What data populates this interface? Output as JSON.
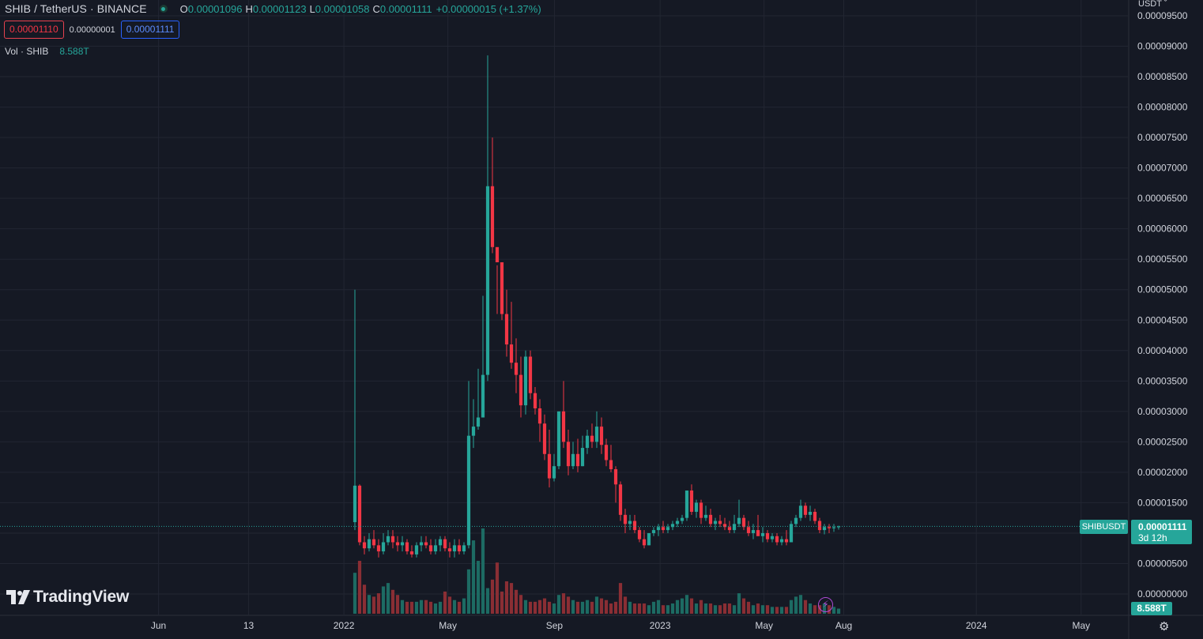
{
  "header": {
    "symbol_title": "SHIB / TetherUS · BINANCE",
    "ohlc": [
      {
        "key": "O",
        "value": "0.00001096"
      },
      {
        "key": "H",
        "value": "0.00001123"
      },
      {
        "key": "L",
        "value": "0.00001058"
      },
      {
        "key": "C",
        "value": "0.00001111"
      }
    ],
    "change": "+0.00000015 (+1.37%)",
    "bid": "0.00001110",
    "spread": "0.00000001",
    "ask": "0.00001111",
    "volume_label": "Vol · SHIB",
    "volume_value": "8.588T"
  },
  "currency_menu": "USDT ˇ",
  "logo_text": "TradingView",
  "price_scale": {
    "symbol_label": "SHIBUSDT",
    "last_price": "0.00001111",
    "countdown": "3d 12h",
    "volume_label": "8.588T"
  },
  "colors": {
    "background": "#151924",
    "grid": "#222632",
    "up": "#26a69a",
    "down": "#f23645",
    "up_volume": "#1d6b63",
    "down_volume": "#8a2e34",
    "text": "#d1d4dc"
  },
  "icons": {
    "flash": "lightning-icon",
    "settings": "gear-icon",
    "currency": "chevron-down-icon"
  },
  "chart_data": {
    "type": "candlestick",
    "interval": "1W",
    "y_axis_ticks": [
      "0.00000000",
      "0.00000500",
      "0.00001000",
      "0.00001500",
      "0.00002000",
      "0.00002500",
      "0.00003000",
      "0.00003500",
      "0.00004000",
      "0.00004500",
      "0.00005000",
      "0.00005500",
      "0.00006000",
      "0.00006500",
      "0.00007000",
      "0.00007500",
      "0.00008000",
      "0.00008500",
      "0.00009000",
      "0.00009500"
    ],
    "ylim": [
      0,
      9.5e-05
    ],
    "x_axis_ticks": [
      {
        "label": "Jun",
        "date": "2021-06-01"
      },
      {
        "label": "13",
        "date": "2021-09-13"
      },
      {
        "label": "2022",
        "date": "2022-01-01"
      },
      {
        "label": "May",
        "date": "2022-05-01"
      },
      {
        "label": "Sep",
        "date": "2022-09-01"
      },
      {
        "label": "2023",
        "date": "2023-01-01"
      },
      {
        "label": "May",
        "date": "2023-05-01"
      },
      {
        "label": "Aug",
        "date": "2023-08-01"
      },
      {
        "label": "2024",
        "date": "2024-01-01"
      },
      {
        "label": "May",
        "date": "2024-05-01"
      }
    ],
    "xlim": [
      "2020-11-30",
      "2024-06-24"
    ],
    "last_price": 1.111e-05,
    "candles_ohlcv_1e_minus_8": [
      [
        1180,
        5000,
        1050,
        1780,
        48
      ],
      [
        1780,
        1800,
        800,
        850,
        62
      ],
      [
        850,
        950,
        650,
        750,
        34
      ],
      [
        750,
        1000,
        700,
        900,
        22
      ],
      [
        900,
        1050,
        750,
        800,
        20
      ],
      [
        800,
        900,
        600,
        700,
        24
      ],
      [
        700,
        1000,
        650,
        850,
        32
      ],
      [
        850,
        1050,
        800,
        950,
        36
      ],
      [
        950,
        1050,
        750,
        850,
        28
      ],
      [
        850,
        950,
        700,
        800,
        22
      ],
      [
        800,
        950,
        700,
        850,
        16
      ],
      [
        850,
        900,
        650,
        700,
        14
      ],
      [
        700,
        800,
        600,
        650,
        14
      ],
      [
        650,
        850,
        600,
        800,
        14
      ],
      [
        800,
        950,
        700,
        850,
        16
      ],
      [
        850,
        950,
        750,
        800,
        16
      ],
      [
        800,
        900,
        650,
        700,
        14
      ],
      [
        700,
        900,
        650,
        800,
        12
      ],
      [
        800,
        950,
        700,
        900,
        14
      ],
      [
        900,
        950,
        700,
        750,
        26
      ],
      [
        750,
        850,
        600,
        700,
        20
      ],
      [
        700,
        900,
        600,
        800,
        16
      ],
      [
        800,
        900,
        650,
        700,
        14
      ],
      [
        700,
        850,
        650,
        800,
        18
      ],
      [
        800,
        3500,
        750,
        2600,
        52
      ],
      [
        2600,
        3200,
        2400,
        2750,
        86
      ],
      [
        2750,
        3700,
        2700,
        2900,
        62
      ],
      [
        2900,
        4900,
        2900,
        3600,
        100
      ],
      [
        3600,
        8850,
        3500,
        6700,
        30
      ],
      [
        6700,
        7500,
        5600,
        5700,
        40
      ],
      [
        5700,
        5400,
        4600,
        5450,
        60
      ],
      [
        5450,
        5400,
        4500,
        4600,
        26
      ],
      [
        4600,
        5000,
        3900,
        4100,
        38
      ],
      [
        4100,
        4800,
        3700,
        3800,
        36
      ],
      [
        3800,
        4200,
        3300,
        3600,
        28
      ],
      [
        3600,
        3900,
        2900,
        3100,
        22
      ],
      [
        3100,
        4000,
        2950,
        3900,
        16
      ],
      [
        3900,
        4000,
        3200,
        3300,
        14
      ],
      [
        3300,
        3400,
        2950,
        3050,
        14
      ],
      [
        3050,
        3200,
        2500,
        2800,
        16
      ],
      [
        2800,
        2950,
        2200,
        2300,
        18
      ],
      [
        2300,
        2700,
        1750,
        1900,
        14
      ],
      [
        1900,
        2300,
        1850,
        2100,
        12
      ],
      [
        2100,
        3000,
        2050,
        3000,
        22
      ],
      [
        3000,
        3500,
        2400,
        2500,
        24
      ],
      [
        2500,
        2700,
        1950,
        2100,
        20
      ],
      [
        2100,
        2500,
        2050,
        2300,
        16
      ],
      [
        2300,
        2550,
        2000,
        2100,
        14
      ],
      [
        2100,
        2600,
        2100,
        2400,
        14
      ],
      [
        2400,
        2700,
        2300,
        2600,
        16
      ],
      [
        2600,
        2800,
        2400,
        2500,
        14
      ],
      [
        2500,
        3000,
        2400,
        2750,
        20
      ],
      [
        2750,
        2900,
        2300,
        2450,
        18
      ],
      [
        2450,
        2550,
        2100,
        2200,
        16
      ],
      [
        2200,
        2450,
        2000,
        2050,
        12
      ],
      [
        2050,
        2100,
        1500,
        1800,
        14
      ],
      [
        1800,
        1850,
        1200,
        1300,
        36
      ],
      [
        1300,
        1400,
        1000,
        1150,
        20
      ],
      [
        1150,
        1300,
        1050,
        1200,
        14
      ],
      [
        1200,
        1300,
        1000,
        1050,
        12
      ],
      [
        1050,
        1100,
        850,
        900,
        12
      ],
      [
        900,
        1050,
        750,
        800,
        12
      ],
      [
        800,
        1000,
        800,
        1000,
        10
      ],
      [
        1000,
        1100,
        950,
        1050,
        14
      ],
      [
        1050,
        1150,
        950,
        1100,
        16
      ],
      [
        1100,
        1200,
        1000,
        1050,
        10
      ],
      [
        1050,
        1150,
        1000,
        1100,
        10
      ],
      [
        1100,
        1200,
        1050,
        1150,
        12
      ],
      [
        1150,
        1250,
        1100,
        1200,
        16
      ],
      [
        1200,
        1300,
        1150,
        1250,
        18
      ],
      [
        1250,
        1700,
        1200,
        1700,
        22
      ],
      [
        1700,
        1800,
        1300,
        1350,
        18
      ],
      [
        1350,
        1550,
        1250,
        1500,
        12
      ],
      [
        1500,
        1550,
        1150,
        1250,
        16
      ],
      [
        1250,
        1450,
        1200,
        1300,
        12
      ],
      [
        1300,
        1400,
        1100,
        1150,
        12
      ],
      [
        1150,
        1250,
        1050,
        1200,
        10
      ],
      [
        1200,
        1300,
        1100,
        1150,
        10
      ],
      [
        1150,
        1250,
        1050,
        1100,
        12
      ],
      [
        1100,
        1200,
        1000,
        1050,
        12
      ],
      [
        1050,
        1300,
        1000,
        1150,
        10
      ],
      [
        1150,
        1550,
        1100,
        1250,
        24
      ],
      [
        1250,
        1300,
        1050,
        1100,
        18
      ],
      [
        1100,
        1200,
        950,
        1000,
        14
      ],
      [
        1000,
        1150,
        900,
        1050,
        10
      ],
      [
        1050,
        1300,
        1000,
        950,
        12
      ],
      [
        950,
        1100,
        850,
        1000,
        10
      ],
      [
        1000,
        1050,
        850,
        900,
        10
      ],
      [
        900,
        1000,
        850,
        950,
        8
      ],
      [
        950,
        1000,
        800,
        850,
        8
      ],
      [
        850,
        950,
        800,
        900,
        8
      ],
      [
        900,
        1050,
        800,
        850,
        8
      ],
      [
        850,
        1200,
        850,
        1150,
        16
      ],
      [
        1150,
        1300,
        1100,
        1250,
        20
      ],
      [
        1250,
        1550,
        1200,
        1450,
        22
      ],
      [
        1450,
        1500,
        1250,
        1300,
        16
      ],
      [
        1300,
        1450,
        1200,
        1350,
        12
      ],
      [
        1350,
        1400,
        1150,
        1200,
        10
      ],
      [
        1200,
        1250,
        1000,
        1050,
        10
      ],
      [
        1050,
        1150,
        980,
        1100,
        12
      ],
      [
        1100,
        1150,
        1000,
        1080,
        10
      ],
      [
        1080,
        1150,
        1020,
        1096,
        8
      ],
      [
        1096,
        1123,
        1058,
        1111,
        6
      ]
    ]
  }
}
